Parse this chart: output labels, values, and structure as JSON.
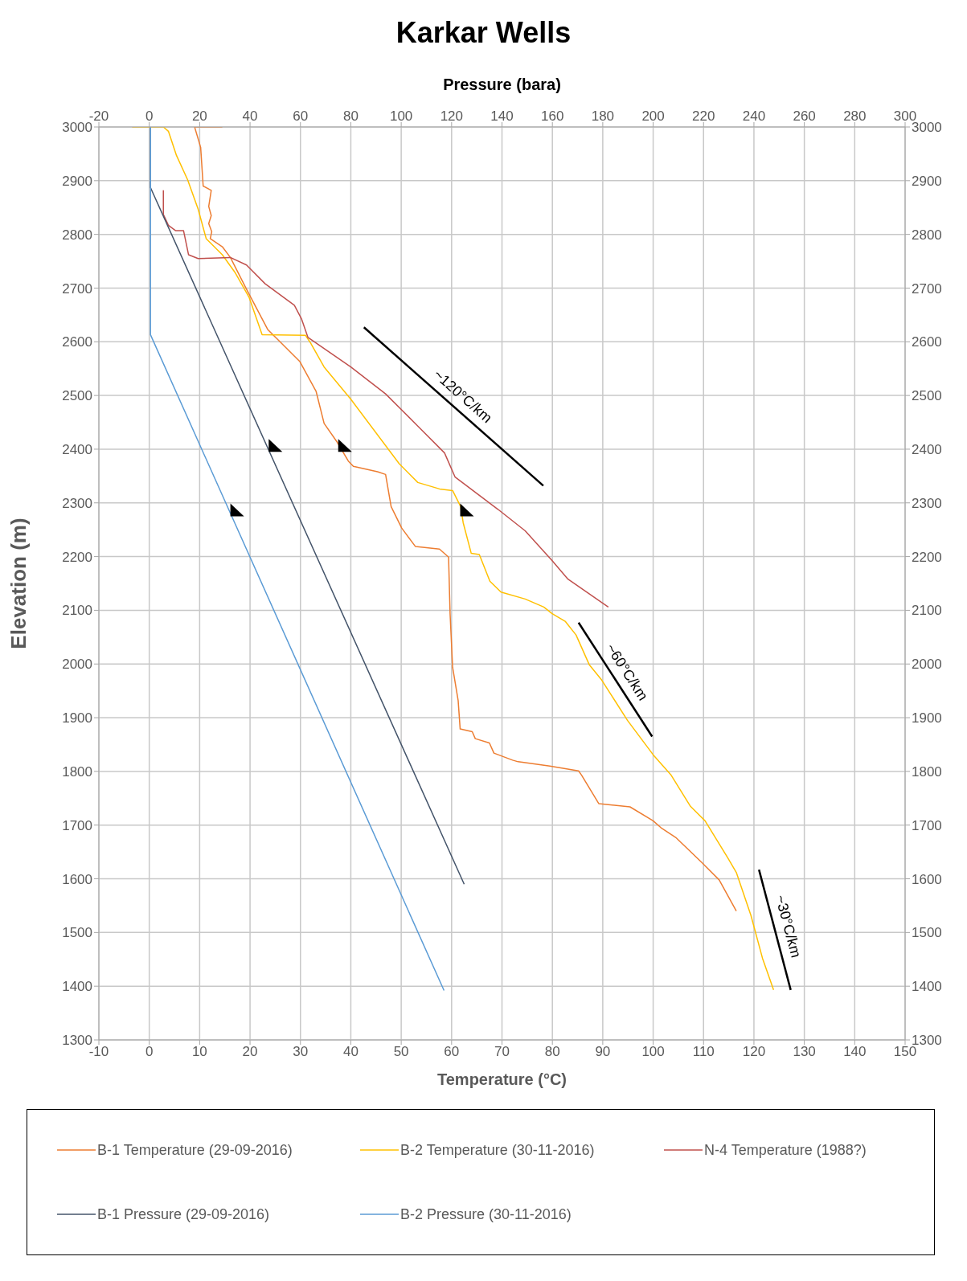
{
  "chart_data": {
    "type": "line",
    "title": "Karkar Wells",
    "xlabel": "Temperature (°C)",
    "x2label": "Pressure (bara)",
    "ylabel": "Elevation (m)",
    "xlim": [
      -10,
      150
    ],
    "xticks": [
      -10,
      0,
      10,
      20,
      30,
      40,
      50,
      60,
      70,
      80,
      90,
      100,
      110,
      120,
      130,
      140,
      150
    ],
    "x2lim": [
      -20,
      300
    ],
    "x2ticks": [
      -20,
      0,
      20,
      40,
      60,
      80,
      100,
      120,
      140,
      160,
      180,
      200,
      220,
      240,
      260,
      280,
      300
    ],
    "ylim": [
      1300,
      3000
    ],
    "yticks": [
      1300,
      1400,
      1500,
      1600,
      1700,
      1800,
      1900,
      2000,
      2100,
      2200,
      2300,
      2400,
      2500,
      2600,
      2700,
      2800,
      2900,
      3000
    ],
    "y2lim": [
      1300,
      3000
    ],
    "y2ticks": [
      1300,
      1400,
      1500,
      1600,
      1700,
      1800,
      1900,
      2000,
      2100,
      2200,
      2300,
      2400,
      2500,
      2600,
      2700,
      2800,
      2900,
      3000
    ],
    "grid": true,
    "legend": "bottom",
    "series": [
      {
        "name": "B-1 Temperature (29-09-2016)",
        "color": "#ed7d31",
        "x": [
          14.5,
          9,
          10.2,
          10.7,
          12.3,
          11.8,
          12.3,
          11.8,
          12.4,
          12.1,
          14.5,
          16.1,
          19.3,
          23.5,
          29.9,
          33.1,
          34.7,
          37.3,
          39.5,
          40.5,
          45.3,
          46.9,
          48,
          50.1,
          52.8,
          57.6,
          59.4,
          59.7,
          60.2,
          61.3,
          61.7,
          64.1,
          64.7,
          67.5,
          68.4,
          72.1,
          73.2,
          79.5,
          85.2,
          85.8,
          89.2,
          95.4,
          100,
          101.7,
          104.6,
          109.7,
          113.1,
          116.5
        ],
        "values": [
          3000,
          3000,
          2962,
          2890,
          2882,
          2852,
          2835,
          2820,
          2805,
          2792,
          2777,
          2757,
          2698,
          2623,
          2563,
          2508,
          2448,
          2413,
          2378,
          2368,
          2358,
          2353,
          2293,
          2253,
          2219,
          2214,
          2199,
          2094,
          1994,
          1932,
          1879,
          1874,
          1861,
          1853,
          1834,
          1821,
          1818,
          1810,
          1801,
          1793,
          1740,
          1734,
          1708,
          1694,
          1676,
          1630,
          1598,
          1540
        ]
      },
      {
        "name": "B-2 Temperature (30-11-2016)",
        "color": "#ffc000",
        "x": [
          -3.4,
          2.8,
          3.8,
          5.4,
          7.6,
          9.7,
          11.3,
          14.5,
          17.1,
          19.8,
          22.4,
          31,
          32,
          34.7,
          40,
          49.6,
          53.3,
          57.6,
          60.2,
          61.8,
          62.3,
          63.9,
          65.5,
          67.6,
          69.8,
          74.6,
          78.3,
          79.9,
          82.6,
          84.7,
          87.3,
          89.8,
          94.9,
          100,
          103.5,
          107.4,
          110.3,
          114.8,
          116.5,
          119.4,
          121.7,
          123.9
        ],
        "values": [
          3000,
          3000,
          2992,
          2947,
          2902,
          2847,
          2792,
          2762,
          2728,
          2683,
          2613,
          2612,
          2598,
          2553,
          2493,
          2373,
          2338,
          2326,
          2323,
          2293,
          2263,
          2206,
          2204,
          2154,
          2134,
          2121,
          2106,
          2094,
          2079,
          2054,
          1999,
          1970,
          1895,
          1831,
          1794,
          1735,
          1708,
          1639,
          1612,
          1532,
          1452,
          1393
        ]
      },
      {
        "name": "N-4 Temperature (1988?)",
        "color": "#c0504d",
        "x": [
          2.8,
          2.8,
          3.8,
          5.2,
          6.8,
          7.8,
          9.7,
          16.1,
          19.3,
          23,
          28.8,
          30.2,
          31.5,
          40,
          46.9,
          53.3,
          58.6,
          60.7,
          69.2,
          74.6,
          79.9,
          83.1,
          91.1
        ],
        "values": [
          2882,
          2837,
          2817,
          2807,
          2807,
          2762,
          2755,
          2757,
          2743,
          2708,
          2668,
          2643,
          2608,
          2553,
          2503,
          2443,
          2393,
          2348,
          2288,
          2248,
          2193,
          2158,
          2106
        ]
      },
      {
        "name": "B-1 Pressure (29-09-2016)",
        "color": "#44546a",
        "axis": "x2",
        "x": [
          0.5,
          0.5,
          125
        ],
        "values": [
          3000,
          2887,
          1590
        ]
      },
      {
        "name": "B-2 Pressure (30-11-2016)",
        "color": "#5b9bd5",
        "axis": "x2",
        "x": [
          0.5,
          0.5,
          117
        ],
        "values": [
          3000,
          2613,
          1392
        ]
      },
      {
        "type": "line",
        "color": "#000000",
        "x": [
          42.6,
          78.2
        ],
        "values": [
          2627,
          2332
        ]
      },
      {
        "type": "line",
        "color": "#000000",
        "x": [
          85.2,
          99.8
        ],
        "values": [
          2077,
          1865
        ]
      },
      {
        "type": "line",
        "color": "#000000",
        "x": [
          121,
          127.3
        ],
        "values": [
          1617,
          1393
        ]
      }
    ],
    "annotations": [
      "~120°C/km",
      "~60°C/km",
      "~30°C/km"
    ]
  }
}
